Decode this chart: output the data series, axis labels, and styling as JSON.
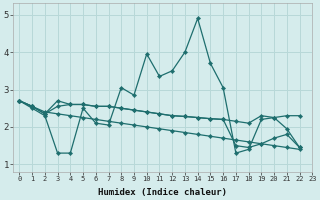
{
  "xlabel": "Humidex (Indice chaleur)",
  "background_color": "#d5ecec",
  "grid_color": "#b8d8d8",
  "line_color": "#1e6e6e",
  "xlim": [
    -0.5,
    23
  ],
  "ylim": [
    0.8,
    5.3
  ],
  "xticks": [
    0,
    1,
    2,
    3,
    4,
    5,
    6,
    7,
    8,
    9,
    10,
    11,
    12,
    13,
    14,
    15,
    16,
    17,
    18,
    19,
    20,
    21,
    22,
    23
  ],
  "yticks": [
    1,
    2,
    3,
    4,
    5
  ],
  "series": [
    {
      "x": [
        0,
        1,
        2,
        3,
        4,
        5,
        6,
        7,
        8,
        9,
        10,
        11,
        12,
        13,
        14,
        15,
        16,
        17,
        18,
        19,
        20,
        21,
        22
      ],
      "y": [
        2.7,
        2.5,
        2.3,
        1.3,
        1.3,
        2.5,
        2.1,
        2.05,
        3.05,
        2.85,
        3.95,
        3.35,
        3.5,
        4.0,
        4.9,
        3.7,
        3.05,
        1.3,
        1.4,
        2.2,
        2.25,
        1.95,
        1.45
      ]
    },
    {
      "x": [
        0,
        1,
        2,
        3,
        4,
        5,
        6,
        7,
        8,
        9,
        10,
        11,
        12,
        13,
        14,
        15,
        16,
        17,
        18,
        19,
        20,
        21,
        22
      ],
      "y": [
        2.7,
        2.55,
        2.35,
        2.7,
        2.6,
        2.6,
        2.55,
        2.55,
        2.5,
        2.45,
        2.4,
        2.35,
        2.3,
        2.28,
        2.25,
        2.22,
        2.2,
        2.15,
        2.1,
        2.3,
        2.25,
        2.3,
        2.3
      ]
    },
    {
      "x": [
        0,
        1,
        2,
        3,
        4,
        5,
        6,
        7,
        8,
        9,
        10,
        11,
        12,
        13,
        14,
        15,
        16,
        17,
        18,
        19,
        20,
        21,
        22
      ],
      "y": [
        2.7,
        2.55,
        2.35,
        2.55,
        2.6,
        2.6,
        2.55,
        2.55,
        2.5,
        2.45,
        2.4,
        2.35,
        2.3,
        2.28,
        2.25,
        2.22,
        2.2,
        1.5,
        1.45,
        1.55,
        1.7,
        1.8,
        1.45
      ]
    },
    {
      "x": [
        0,
        1,
        2,
        3,
        4,
        5,
        6,
        7,
        8,
        9,
        10,
        11,
        12,
        13,
        14,
        15,
        16,
        17,
        18,
        19,
        20,
        21,
        22
      ],
      "y": [
        2.7,
        2.55,
        2.4,
        2.35,
        2.3,
        2.25,
        2.2,
        2.15,
        2.1,
        2.05,
        2.0,
        1.95,
        1.9,
        1.85,
        1.8,
        1.75,
        1.7,
        1.65,
        1.6,
        1.55,
        1.5,
        1.45,
        1.4
      ]
    }
  ]
}
